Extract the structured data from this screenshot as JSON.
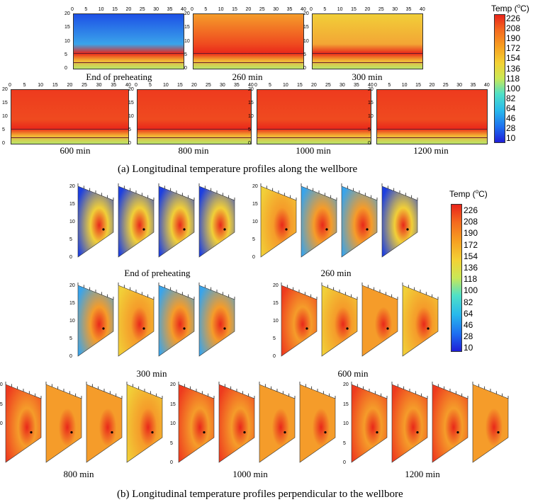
{
  "part_a": {
    "caption": "(a) Longitudinal temperature profiles along the wellbore",
    "x_ticks": [
      "0",
      "5",
      "10",
      "15",
      "20",
      "25",
      "30",
      "35",
      "40"
    ],
    "y_ticks": [
      "20",
      "15",
      "10",
      "5",
      "0"
    ],
    "panels": [
      {
        "label": "End of preheating",
        "heat": 0.05
      },
      {
        "label": "260 min",
        "heat": 0.55
      },
      {
        "label": "300 min",
        "heat": 0.35
      },
      {
        "label": "600 min",
        "heat": 0.75
      },
      {
        "label": "800 min",
        "heat": 0.85
      },
      {
        "label": "1000 min",
        "heat": 0.95
      },
      {
        "label": "1200 min",
        "heat": 1.0
      }
    ]
  },
  "part_b": {
    "caption": "(b) Longitudinal temperature profiles perpendicular to the wellbore",
    "y_ticks": [
      "20",
      "15",
      "10",
      "5",
      "0"
    ],
    "groups": [
      {
        "label": "End of preheating",
        "heat": [
          0.0,
          0.0,
          0.0,
          0.0
        ]
      },
      {
        "label": "260 min",
        "heat": [
          0.4,
          0.3,
          0.3,
          0.1
        ]
      },
      {
        "label": "300 min",
        "heat": [
          0.3,
          0.35,
          0.3,
          0.15
        ]
      },
      {
        "label": "600 min",
        "heat": [
          0.75,
          0.5,
          0.55,
          0.45
        ]
      },
      {
        "label": "800 min",
        "heat": [
          0.85,
          0.7,
          0.7,
          0.5
        ]
      },
      {
        "label": "1000 min",
        "heat": [
          0.9,
          0.8,
          0.7,
          0.55
        ]
      },
      {
        "label": "1200 min",
        "heat": [
          1.0,
          0.9,
          0.85,
          0.6
        ]
      }
    ]
  },
  "colorbar": {
    "title": "Temp (",
    "title_sup": "o",
    "title_end": "C)",
    "labels": [
      "226",
      "208",
      "190",
      "172",
      "154",
      "136",
      "118",
      "100",
      "82",
      "64",
      "46",
      "28",
      "10"
    ]
  }
}
